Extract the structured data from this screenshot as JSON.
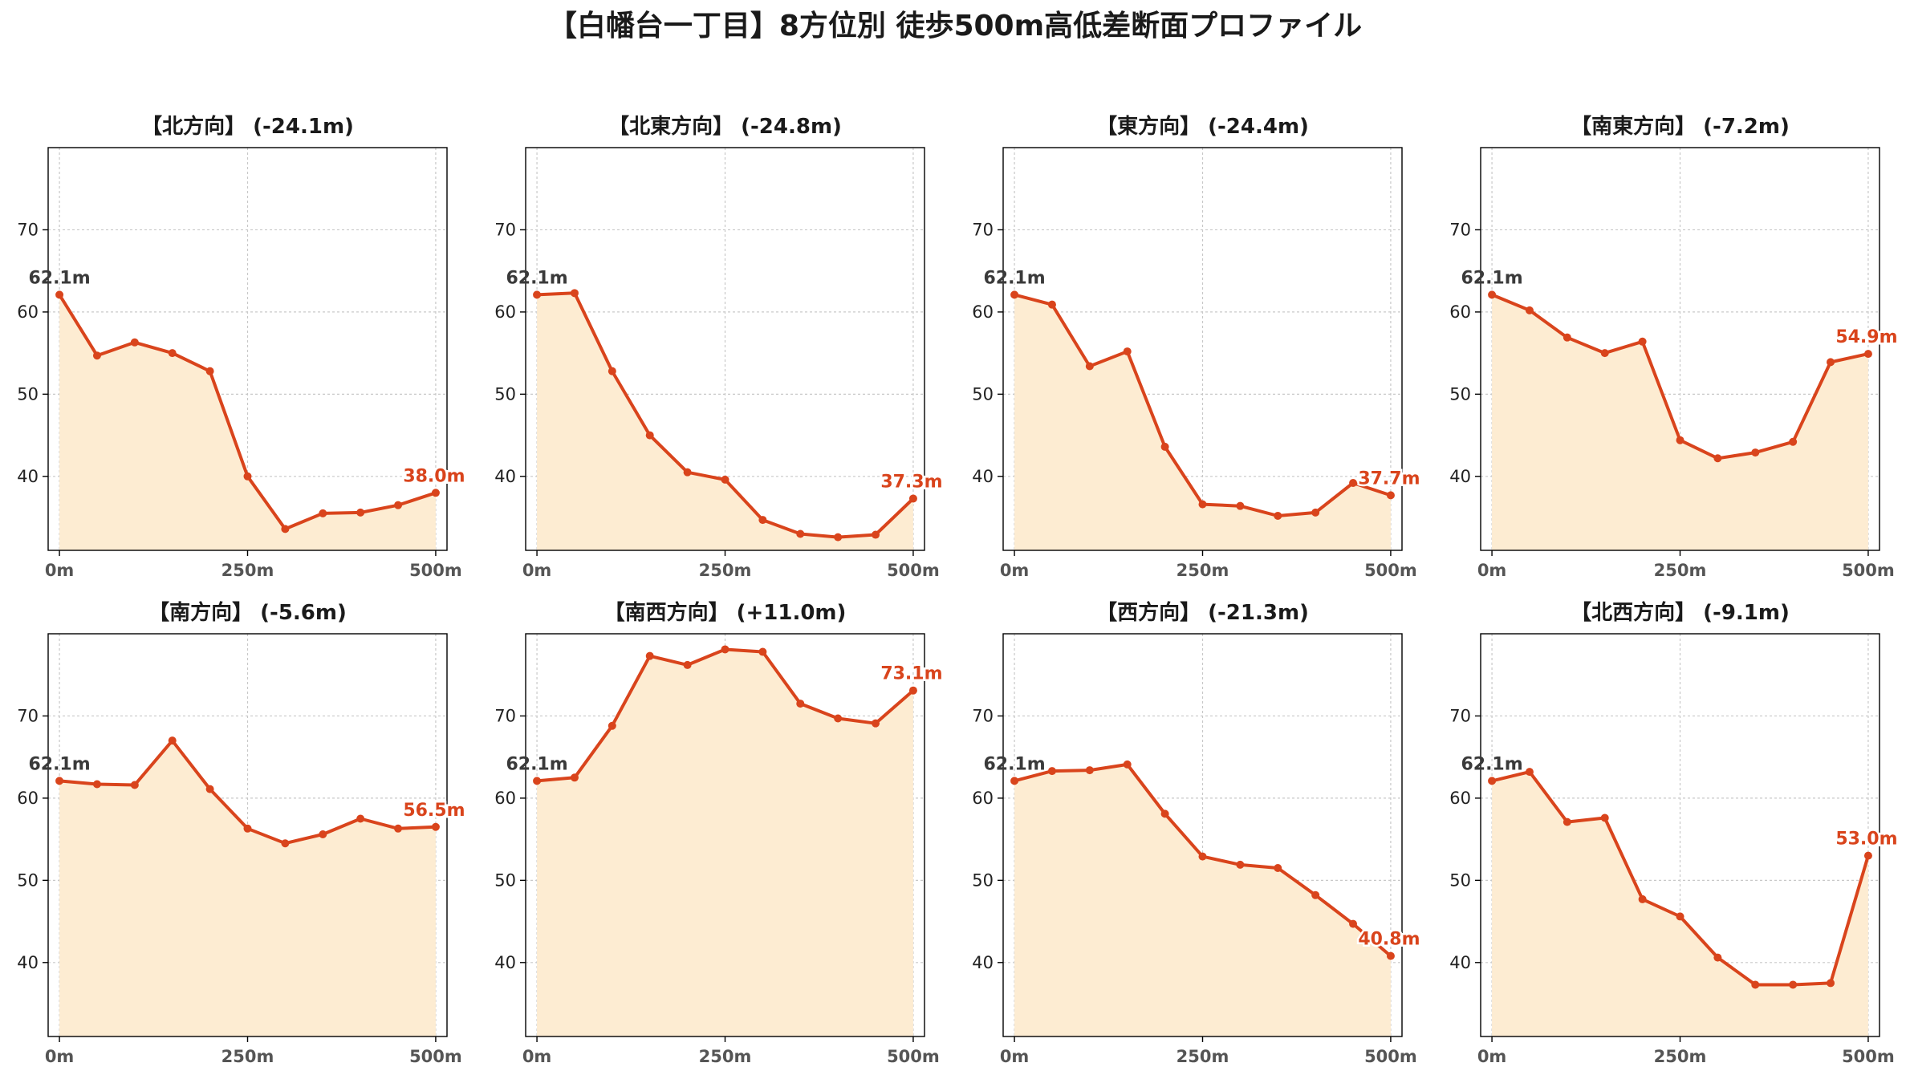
{
  "title": "【白幡台一丁目】8方位別 徒歩500m高低差断面プロファイル",
  "colors": {
    "line": "#d9441c",
    "fill": "#fdecd2",
    "start_label": "#3a3a3a",
    "end_label": "#d9441c",
    "grid": "#c8c8c8",
    "axis": "#000000",
    "tick_text": "#555555"
  },
  "chart_data": [
    {
      "type": "area",
      "title": "【北方向】 (-24.1m)",
      "x": [
        0,
        50,
        100,
        150,
        200,
        250,
        300,
        350,
        400,
        450,
        500
      ],
      "values": [
        62.1,
        54.7,
        56.3,
        55.0,
        52.8,
        40.0,
        33.6,
        35.5,
        35.6,
        36.5,
        38.0
      ],
      "start_label": "62.1m",
      "end_label": "38.0m",
      "x_ticks": [
        0,
        250,
        500
      ],
      "x_tick_labels": [
        "0m",
        "250m",
        "500m"
      ],
      "y_ticks": [
        40,
        50,
        60,
        70
      ],
      "y_tick_labels": [
        "40",
        "50",
        "60",
        "70"
      ],
      "xlim": [
        -15,
        515
      ],
      "ylim": [
        31,
        80
      ],
      "grid": true
    },
    {
      "type": "area",
      "title": "【北東方向】 (-24.8m)",
      "x": [
        0,
        50,
        100,
        150,
        200,
        250,
        300,
        350,
        400,
        450,
        500
      ],
      "values": [
        62.1,
        62.3,
        52.8,
        45.0,
        40.5,
        39.6,
        34.7,
        33.0,
        32.6,
        32.9,
        37.3
      ],
      "start_label": "62.1m",
      "end_label": "37.3m",
      "x_ticks": [
        0,
        250,
        500
      ],
      "x_tick_labels": [
        "0m",
        "250m",
        "500m"
      ],
      "y_ticks": [
        40,
        50,
        60,
        70
      ],
      "y_tick_labels": [
        "40",
        "50",
        "60",
        "70"
      ],
      "xlim": [
        -15,
        515
      ],
      "ylim": [
        31,
        80
      ],
      "grid": true
    },
    {
      "type": "area",
      "title": "【東方向】 (-24.4m)",
      "x": [
        0,
        50,
        100,
        150,
        200,
        250,
        300,
        350,
        400,
        450,
        500
      ],
      "values": [
        62.1,
        60.9,
        53.4,
        55.2,
        43.6,
        36.6,
        36.4,
        35.2,
        35.6,
        39.2,
        37.7
      ],
      "start_label": "62.1m",
      "end_label": "37.7m",
      "x_ticks": [
        0,
        250,
        500
      ],
      "x_tick_labels": [
        "0m",
        "250m",
        "500m"
      ],
      "y_ticks": [
        40,
        50,
        60,
        70
      ],
      "y_tick_labels": [
        "40",
        "50",
        "60",
        "70"
      ],
      "xlim": [
        -15,
        515
      ],
      "ylim": [
        31,
        80
      ],
      "grid": true
    },
    {
      "type": "area",
      "title": "【南東方向】 (-7.2m)",
      "x": [
        0,
        50,
        100,
        150,
        200,
        250,
        300,
        350,
        400,
        450,
        500
      ],
      "values": [
        62.1,
        60.2,
        56.9,
        55.0,
        56.4,
        44.4,
        42.2,
        42.9,
        44.2,
        53.9,
        54.9
      ],
      "start_label": "62.1m",
      "end_label": "54.9m",
      "x_ticks": [
        0,
        250,
        500
      ],
      "x_tick_labels": [
        "0m",
        "250m",
        "500m"
      ],
      "y_ticks": [
        40,
        50,
        60,
        70
      ],
      "y_tick_labels": [
        "40",
        "50",
        "60",
        "70"
      ],
      "xlim": [
        -15,
        515
      ],
      "ylim": [
        31,
        80
      ],
      "grid": true
    },
    {
      "type": "area",
      "title": "【南方向】 (-5.6m)",
      "x": [
        0,
        50,
        100,
        150,
        200,
        250,
        300,
        350,
        400,
        450,
        500
      ],
      "values": [
        62.1,
        61.7,
        61.6,
        67.0,
        61.1,
        56.3,
        54.5,
        55.6,
        57.5,
        56.3,
        56.5
      ],
      "start_label": "62.1m",
      "end_label": "56.5m",
      "x_ticks": [
        0,
        250,
        500
      ],
      "x_tick_labels": [
        "0m",
        "250m",
        "500m"
      ],
      "y_ticks": [
        40,
        50,
        60,
        70
      ],
      "y_tick_labels": [
        "40",
        "50",
        "60",
        "70"
      ],
      "xlim": [
        -15,
        515
      ],
      "ylim": [
        31,
        80
      ],
      "grid": true
    },
    {
      "type": "area",
      "title": "【南西方向】 (+11.0m)",
      "x": [
        0,
        50,
        100,
        150,
        200,
        250,
        300,
        350,
        400,
        450,
        500
      ],
      "values": [
        62.1,
        62.5,
        68.8,
        77.3,
        76.2,
        78.1,
        77.8,
        71.5,
        69.7,
        69.1,
        73.1
      ],
      "start_label": "62.1m",
      "end_label": "73.1m",
      "x_ticks": [
        0,
        250,
        500
      ],
      "x_tick_labels": [
        "0m",
        "250m",
        "500m"
      ],
      "y_ticks": [
        40,
        50,
        60,
        70
      ],
      "y_tick_labels": [
        "40",
        "50",
        "60",
        "70"
      ],
      "xlim": [
        -15,
        515
      ],
      "ylim": [
        31,
        80
      ],
      "grid": true
    },
    {
      "type": "area",
      "title": "【西方向】 (-21.3m)",
      "x": [
        0,
        50,
        100,
        150,
        200,
        250,
        300,
        350,
        400,
        450,
        500
      ],
      "values": [
        62.1,
        63.3,
        63.4,
        64.1,
        58.1,
        52.9,
        51.9,
        51.5,
        48.2,
        44.7,
        40.8
      ],
      "start_label": "62.1m",
      "end_label": "40.8m",
      "x_ticks": [
        0,
        250,
        500
      ],
      "x_tick_labels": [
        "0m",
        "250m",
        "500m"
      ],
      "y_ticks": [
        40,
        50,
        60,
        70
      ],
      "y_tick_labels": [
        "40",
        "50",
        "60",
        "70"
      ],
      "xlim": [
        -15,
        515
      ],
      "ylim": [
        31,
        80
      ],
      "grid": true
    },
    {
      "type": "area",
      "title": "【北西方向】 (-9.1m)",
      "x": [
        0,
        50,
        100,
        150,
        200,
        250,
        300,
        350,
        400,
        450,
        500
      ],
      "values": [
        62.1,
        63.2,
        57.1,
        57.6,
        47.7,
        45.6,
        40.6,
        37.3,
        37.3,
        37.5,
        53.0
      ],
      "start_label": "62.1m",
      "end_label": "53.0m",
      "x_ticks": [
        0,
        250,
        500
      ],
      "x_tick_labels": [
        "0m",
        "250m",
        "500m"
      ],
      "y_ticks": [
        40,
        50,
        60,
        70
      ],
      "y_tick_labels": [
        "40",
        "50",
        "60",
        "70"
      ],
      "xlim": [
        -15,
        515
      ],
      "ylim": [
        31,
        80
      ],
      "grid": true
    }
  ]
}
